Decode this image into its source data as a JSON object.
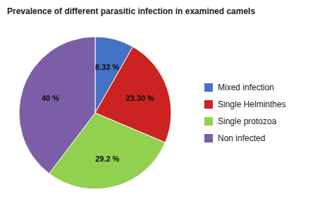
{
  "chart_data": {
    "type": "pie",
    "title": "Prevalence of different parasitic infection in examined camels",
    "categories": [
      "Mixed infection",
      "Single Helminthes",
      "Single protozoa",
      "Non infected"
    ],
    "values": [
      8.33,
      23.3,
      29.2,
      40.0
    ],
    "value_labels": [
      "8.33 %",
      "23.30 %",
      "29.2 %",
      "40 %"
    ],
    "colors": [
      "#4472C4",
      "#CC2222",
      "#92D050",
      "#7B5EA7"
    ],
    "data_labels": true,
    "legend": "right"
  }
}
